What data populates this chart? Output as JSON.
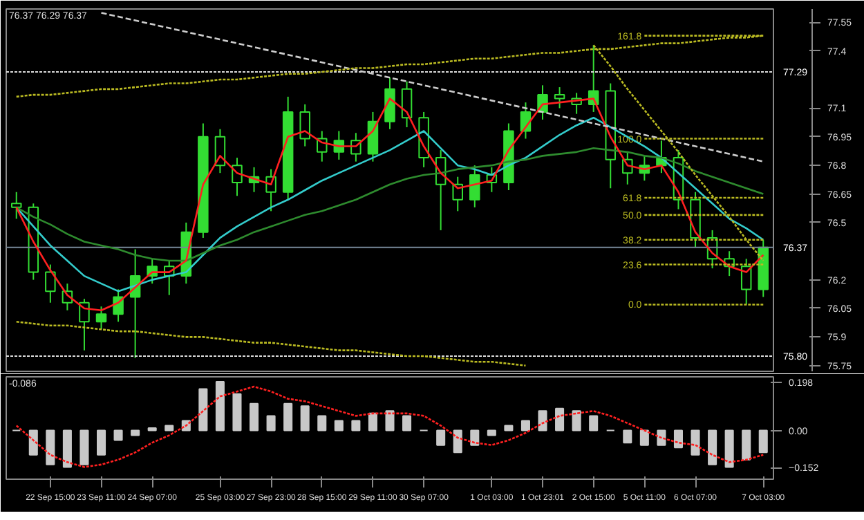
{
  "chart_data": [
    {
      "type": "candlestick",
      "color": "#33dd33",
      "tick_labels": "y",
      "categories": [
        null,
        null,
        null,
        null,
        null,
        null,
        null,
        null,
        null,
        null,
        null,
        null,
        null,
        null,
        null,
        null,
        null,
        null,
        null,
        null,
        null,
        null,
        null,
        null,
        null,
        null,
        null,
        null,
        null,
        null,
        null,
        null,
        null,
        null,
        null,
        null,
        null,
        null,
        null,
        null,
        null,
        null,
        null,
        null,
        null
      ],
      "ohlc": [
        [
          76.6,
          76.66,
          76.52,
          76.58
        ],
        [
          76.58,
          76.6,
          76.2,
          76.24
        ],
        [
          76.24,
          76.28,
          76.08,
          76.14
        ],
        [
          76.14,
          76.18,
          76.04,
          76.08
        ],
        [
          76.08,
          76.1,
          75.83,
          75.98
        ],
        [
          75.98,
          76.06,
          75.94,
          76.02
        ],
        [
          76.02,
          76.15,
          75.98,
          76.11
        ],
        [
          76.11,
          76.36,
          75.79,
          76.22
        ],
        [
          76.22,
          76.31,
          76.18,
          76.27
        ],
        [
          76.27,
          76.3,
          76.12,
          76.22
        ],
        [
          76.22,
          76.5,
          76.18,
          76.45
        ],
        [
          76.45,
          77.02,
          76.42,
          76.95
        ],
        [
          76.95,
          76.99,
          76.76,
          76.8
        ],
        [
          76.8,
          76.84,
          76.64,
          76.71
        ],
        [
          76.71,
          76.79,
          76.66,
          76.74
        ],
        [
          76.74,
          76.78,
          76.56,
          76.66
        ],
        [
          76.66,
          77.16,
          76.62,
          77.08
        ],
        [
          77.08,
          77.12,
          76.9,
          76.94
        ],
        [
          76.94,
          76.98,
          76.82,
          76.87
        ],
        [
          76.87,
          76.98,
          76.83,
          76.93
        ],
        [
          76.93,
          76.97,
          76.82,
          76.86
        ],
        [
          76.86,
          77.08,
          76.82,
          77.03
        ],
        [
          77.03,
          77.26,
          76.99,
          77.2
        ],
        [
          77.2,
          77.24,
          77.0,
          77.05
        ],
        [
          77.05,
          77.08,
          76.79,
          76.84
        ],
        [
          76.84,
          76.88,
          76.46,
          76.7
        ],
        [
          76.7,
          76.74,
          76.56,
          76.62
        ],
        [
          76.62,
          76.8,
          76.58,
          76.75
        ],
        [
          76.75,
          76.79,
          76.66,
          76.71
        ],
        [
          76.71,
          77.02,
          76.67,
          76.98
        ],
        [
          76.98,
          77.13,
          76.94,
          77.08
        ],
        [
          77.08,
          77.22,
          77.04,
          77.17
        ],
        [
          77.17,
          77.21,
          77.1,
          77.15
        ],
        [
          77.15,
          77.18,
          77.07,
          77.12
        ],
        [
          77.12,
          77.43,
          77.08,
          77.19
        ],
        [
          77.19,
          77.23,
          76.68,
          76.83
        ],
        [
          76.83,
          76.87,
          76.7,
          76.76
        ],
        [
          76.76,
          76.85,
          76.72,
          76.8
        ],
        [
          76.8,
          76.93,
          76.76,
          76.84
        ],
        [
          76.84,
          76.88,
          76.57,
          76.62
        ],
        [
          76.62,
          76.66,
          76.37,
          76.42
        ],
        [
          76.42,
          76.46,
          76.26,
          76.31
        ],
        [
          76.31,
          76.35,
          76.22,
          76.27
        ],
        [
          76.27,
          76.31,
          76.07,
          76.15
        ],
        [
          76.15,
          76.41,
          76.11,
          76.37
        ]
      ],
      "series": [
        {
          "type": "line",
          "color": "#33cccc",
          "values": [
            76.58,
            76.48,
            76.38,
            76.3,
            76.22,
            76.18,
            76.14,
            76.17,
            76.2,
            76.22,
            76.24,
            76.33,
            76.42,
            76.48,
            76.53,
            76.58,
            76.62,
            76.67,
            76.72,
            76.76,
            76.8,
            76.84,
            76.88,
            76.93,
            76.98,
            76.89,
            76.8,
            76.78,
            76.75,
            76.8,
            76.84,
            76.9,
            76.96,
            77.01,
            77.05,
            77.0,
            76.95,
            76.9,
            76.84,
            76.76,
            76.68,
            76.6,
            76.52,
            76.47,
            76.41
          ]
        },
        {
          "type": "line",
          "color": "#2e8b2e",
          "values": [
            76.58,
            76.53,
            76.49,
            76.44,
            76.4,
            76.38,
            76.36,
            76.33,
            76.31,
            76.3,
            76.3,
            76.34,
            76.38,
            76.41,
            76.45,
            76.48,
            76.51,
            76.54,
            76.56,
            76.59,
            76.62,
            76.66,
            76.7,
            76.73,
            76.75,
            76.76,
            76.78,
            76.79,
            76.8,
            76.82,
            76.83,
            76.85,
            76.86,
            76.87,
            76.89,
            76.88,
            76.87,
            76.85,
            76.84,
            76.81,
            76.77,
            76.74,
            76.71,
            76.68,
            76.65
          ]
        },
        {
          "type": "line",
          "color": "#ff2020",
          "values": [
            76.58,
            76.4,
            76.25,
            76.12,
            76.05,
            76.04,
            76.08,
            76.16,
            76.24,
            76.24,
            76.3,
            76.7,
            76.85,
            76.76,
            76.73,
            76.7,
            76.95,
            76.98,
            76.92,
            76.9,
            76.9,
            76.98,
            77.15,
            77.08,
            76.9,
            76.76,
            76.68,
            76.7,
            76.72,
            76.88,
            77.0,
            77.12,
            77.13,
            77.14,
            77.15,
            76.95,
            76.8,
            76.78,
            76.8,
            76.66,
            76.45,
            76.34,
            76.27,
            76.24,
            76.33
          ]
        },
        {
          "type": "line",
          "color": "#cccccc",
          "line_style": "dashed",
          "values": [
            null,
            null,
            null,
            null,
            null,
            77.6,
            77.58,
            77.56,
            77.54,
            77.52,
            77.5,
            77.48,
            77.46,
            77.44,
            77.42,
            77.4,
            77.38,
            77.36,
            77.34,
            77.32,
            77.3,
            77.28,
            77.26,
            77.24,
            77.22,
            77.2,
            77.18,
            77.16,
            77.14,
            77.12,
            77.1,
            77.08,
            77.06,
            77.04,
            77.02,
            77.0,
            76.98,
            76.96,
            76.94,
            76.92,
            76.9,
            76.88,
            76.86,
            76.84,
            76.82
          ]
        },
        {
          "type": "line",
          "color": "#bbbb22",
          "line_style": "dotted",
          "values": [
            null,
            null,
            null,
            null,
            null,
            null,
            null,
            null,
            null,
            null,
            null,
            null,
            null,
            null,
            null,
            null,
            null,
            null,
            null,
            null,
            null,
            null,
            null,
            null,
            null,
            null,
            null,
            null,
            null,
            null,
            null,
            null,
            null,
            null,
            77.43,
            77.32,
            77.2,
            77.09,
            76.98,
            76.87,
            76.75,
            76.64,
            76.53,
            76.41,
            76.3
          ]
        },
        {
          "type": "line",
          "color": "#bbbb22",
          "line_style": "dotted",
          "values": [
            77.16,
            77.17,
            77.17,
            77.18,
            77.19,
            77.2,
            77.2,
            77.21,
            77.22,
            77.23,
            77.23,
            77.24,
            77.25,
            77.25,
            77.26,
            77.27,
            77.28,
            77.28,
            77.29,
            77.3,
            77.31,
            77.31,
            77.32,
            77.33,
            77.33,
            77.34,
            77.35,
            77.36,
            77.36,
            77.37,
            77.38,
            77.39,
            77.39,
            77.4,
            77.41,
            77.41,
            77.42,
            77.43,
            77.44,
            77.44,
            77.45,
            77.46,
            77.47,
            77.47,
            77.48
          ]
        },
        {
          "type": "line",
          "color": "#bbbb22",
          "line_style": "dotted",
          "values": [
            75.98,
            75.97,
            75.96,
            75.96,
            75.95,
            75.94,
            75.93,
            75.93,
            75.92,
            75.91,
            75.9,
            75.9,
            75.89,
            75.88,
            75.87,
            75.87,
            75.86,
            75.85,
            75.84,
            75.83,
            75.83,
            75.82,
            75.81,
            75.8,
            75.8,
            75.79,
            75.78,
            75.77,
            75.77,
            75.76,
            75.75,
            null,
            null,
            null,
            null,
            null,
            null,
            null,
            null,
            null,
            null,
            null,
            null,
            null,
            null
          ]
        },
        {
          "type": "line",
          "name": "161.8",
          "color": "#bbbb22",
          "line_style": "dotted",
          "values": [
            null,
            null,
            null,
            null,
            null,
            null,
            null,
            null,
            null,
            null,
            null,
            null,
            null,
            null,
            null,
            null,
            null,
            null,
            null,
            null,
            null,
            null,
            null,
            null,
            null,
            null,
            null,
            null,
            null,
            null,
            null,
            null,
            null,
            null,
            null,
            null,
            null,
            77.48,
            77.48,
            77.48,
            77.48,
            77.48,
            77.48,
            77.48,
            77.48
          ]
        },
        {
          "type": "line",
          "name": "100.0",
          "color": "#bbbb22",
          "line_style": "dotted",
          "values": [
            null,
            null,
            null,
            null,
            null,
            null,
            null,
            null,
            null,
            null,
            null,
            null,
            null,
            null,
            null,
            null,
            null,
            null,
            null,
            null,
            null,
            null,
            null,
            null,
            null,
            null,
            null,
            null,
            null,
            null,
            null,
            null,
            null,
            null,
            null,
            null,
            null,
            76.94,
            76.94,
            76.94,
            76.94,
            76.94,
            76.94,
            76.94,
            76.94
          ]
        },
        {
          "type": "line",
          "name": "61.8",
          "color": "#bbbb22",
          "line_style": "dotted",
          "values": [
            null,
            null,
            null,
            null,
            null,
            null,
            null,
            null,
            null,
            null,
            null,
            null,
            null,
            null,
            null,
            null,
            null,
            null,
            null,
            null,
            null,
            null,
            null,
            null,
            null,
            null,
            null,
            null,
            null,
            null,
            null,
            null,
            null,
            null,
            null,
            null,
            null,
            76.63,
            76.63,
            76.63,
            76.63,
            76.63,
            76.63,
            76.63,
            76.63
          ]
        },
        {
          "type": "line",
          "name": "50.0",
          "color": "#bbbb22",
          "line_style": "dotted",
          "values": [
            null,
            null,
            null,
            null,
            null,
            null,
            null,
            null,
            null,
            null,
            null,
            null,
            null,
            null,
            null,
            null,
            null,
            null,
            null,
            null,
            null,
            null,
            null,
            null,
            null,
            null,
            null,
            null,
            null,
            null,
            null,
            null,
            null,
            null,
            null,
            null,
            null,
            76.54,
            76.54,
            76.54,
            76.54,
            76.54,
            76.54,
            76.54,
            76.54
          ]
        },
        {
          "type": "line",
          "name": "38.2",
          "color": "#bbbb22",
          "line_style": "dotted",
          "values": [
            null,
            null,
            null,
            null,
            null,
            null,
            null,
            null,
            null,
            null,
            null,
            null,
            null,
            null,
            null,
            null,
            null,
            null,
            null,
            null,
            null,
            null,
            null,
            null,
            null,
            null,
            null,
            null,
            null,
            null,
            null,
            null,
            null,
            null,
            null,
            null,
            null,
            76.41,
            76.41,
            76.41,
            76.41,
            76.41,
            76.41,
            76.41,
            76.41
          ]
        },
        {
          "type": "line",
          "name": "23.6",
          "color": "#bbbb22",
          "line_style": "dotted",
          "values": [
            null,
            null,
            null,
            null,
            null,
            null,
            null,
            null,
            null,
            null,
            null,
            null,
            null,
            null,
            null,
            null,
            null,
            null,
            null,
            null,
            null,
            null,
            null,
            null,
            null,
            null,
            null,
            null,
            null,
            null,
            null,
            null,
            null,
            null,
            null,
            null,
            null,
            76.28,
            76.28,
            76.28,
            76.28,
            76.28,
            76.28,
            76.28,
            76.28
          ]
        },
        {
          "type": "line",
          "name": "0.0",
          "color": "#bbbb22",
          "line_style": "dotted",
          "values": [
            null,
            null,
            null,
            null,
            null,
            null,
            null,
            null,
            null,
            null,
            null,
            null,
            null,
            null,
            null,
            null,
            null,
            null,
            null,
            null,
            null,
            null,
            null,
            null,
            null,
            null,
            null,
            null,
            null,
            null,
            null,
            null,
            null,
            null,
            null,
            null,
            null,
            76.07,
            76.07,
            76.07,
            76.07,
            76.07,
            76.07,
            76.07,
            76.07
          ]
        }
      ],
      "ref_lines": [
        {
          "axis": "y",
          "value": 77.29,
          "label": "77.29",
          "color": "#dddddd",
          "line_style": "dotted"
        },
        {
          "axis": "y",
          "value": 76.37,
          "label": "76.37",
          "color": "#778899",
          "line_style": "solid"
        },
        {
          "axis": "y",
          "value": 75.8,
          "label": "75.80",
          "color": "#dddddd",
          "line_style": "dotted"
        }
      ],
      "ylim": [
        75.72,
        77.62
      ],
      "yticks": [
        77.55,
        77.4,
        77.1,
        76.95,
        76.8,
        76.65,
        76.5,
        76.2,
        76.05,
        75.9,
        75.75
      ],
      "annotations": [
        "76.37 76.29 76.37"
      ]
    },
    {
      "type": "bar",
      "color": "#c8c8c8",
      "categories": [
        null,
        null,
        "22 Sep 15:00",
        null,
        null,
        "23 Sep 11:00",
        null,
        null,
        "24 Sep 07:00",
        null,
        null,
        null,
        "25 Sep 03:00",
        null,
        null,
        "27 Sep 23:00",
        null,
        null,
        "28 Sep 15:00",
        null,
        null,
        "29 Sep 11:00",
        null,
        null,
        "30 Sep 07:00",
        null,
        null,
        null,
        "1 Oct 03:00",
        null,
        null,
        "1 Oct 23:01",
        null,
        null,
        "2 Oct 15:00",
        null,
        null,
        "5 Oct 11:00",
        null,
        null,
        "6 Oct 07:00",
        null,
        null,
        null,
        "7 Oct 03:00"
      ],
      "values": [
        0.0,
        -0.1,
        -0.14,
        -0.15,
        -0.14,
        -0.1,
        -0.04,
        -0.02,
        0.01,
        0.02,
        0.04,
        0.17,
        0.2,
        0.15,
        0.11,
        0.06,
        0.11,
        0.1,
        0.06,
        0.04,
        0.04,
        0.07,
        0.08,
        0.06,
        0.0,
        -0.06,
        -0.09,
        -0.06,
        -0.02,
        0.02,
        0.04,
        0.08,
        0.09,
        0.08,
        0.06,
        0.0,
        -0.05,
        -0.06,
        -0.06,
        -0.07,
        -0.1,
        -0.14,
        -0.15,
        -0.12,
        -0.09
      ],
      "series": [
        {
          "type": "line",
          "color": "#ff2020",
          "line_style": "dotted",
          "values": [
            0.02,
            -0.04,
            -0.1,
            -0.13,
            -0.15,
            -0.14,
            -0.12,
            -0.09,
            -0.05,
            -0.02,
            0.02,
            0.08,
            0.14,
            0.16,
            0.18,
            0.16,
            0.13,
            0.12,
            0.1,
            0.08,
            0.06,
            0.07,
            0.07,
            0.07,
            0.06,
            0.02,
            -0.03,
            -0.05,
            -0.06,
            -0.04,
            -0.01,
            0.03,
            0.06,
            0.07,
            0.08,
            0.06,
            0.03,
            0.0,
            -0.03,
            -0.05,
            -0.06,
            -0.1,
            -0.13,
            -0.12,
            -0.1
          ]
        }
      ],
      "ylim": [
        -0.2,
        0.22
      ],
      "yticks": [
        0.198,
        {
          "value": 0,
          "label": "0.00"
        },
        -0.152
      ],
      "annotations": [
        "-0.086"
      ]
    }
  ]
}
